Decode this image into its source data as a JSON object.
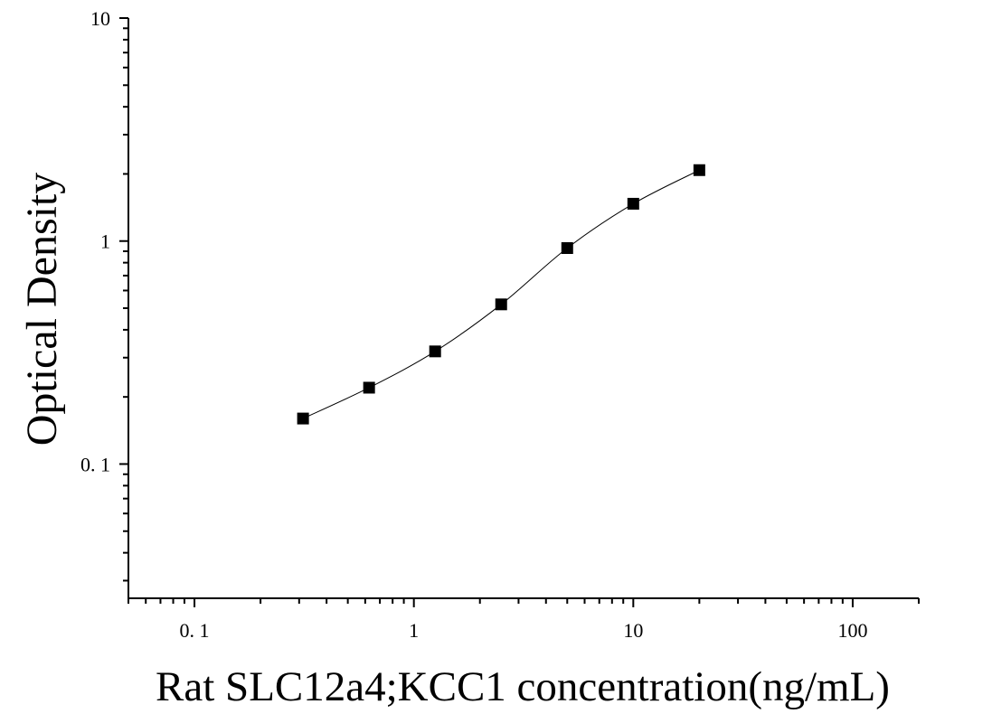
{
  "chart_data": {
    "type": "scatter",
    "title": "",
    "xlabel": "Rat SLC12a4;KCC1 concentration(ng/mL)",
    "ylabel": "Optical Density",
    "x_scale": "log",
    "y_scale": "log",
    "xlim": [
      0.05,
      200
    ],
    "ylim": [
      0.025,
      10
    ],
    "x_ticks": [
      {
        "value": 0.1,
        "label": "0. 1"
      },
      {
        "value": 1,
        "label": "1"
      },
      {
        "value": 10,
        "label": "10"
      },
      {
        "value": 100,
        "label": "100"
      }
    ],
    "y_ticks": [
      {
        "value": 0.1,
        "label": "0. 1"
      },
      {
        "value": 1,
        "label": "1"
      },
      {
        "value": 10,
        "label": "10"
      }
    ],
    "grid": false,
    "legend": "none",
    "series": [
      {
        "x": [
          0.3125,
          0.625,
          1.25,
          2.5,
          5,
          10,
          20
        ],
        "y": [
          0.16,
          0.22,
          0.32,
          0.52,
          0.93,
          1.47,
          2.08
        ],
        "marker": "square",
        "color": "#000000",
        "fit_curve": true
      }
    ]
  }
}
